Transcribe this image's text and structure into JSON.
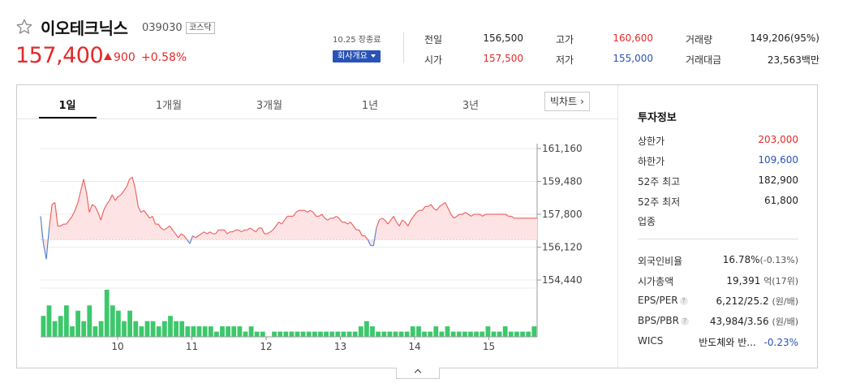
{
  "header": {
    "name": "이오테크닉스",
    "code": "039030",
    "market": "코스닥",
    "price": "157,400",
    "change": "900",
    "change_rate": "+0.58%",
    "date": "10.25 장종료",
    "overview_label": "회사개요"
  },
  "summary": {
    "prev_close_label": "전일",
    "prev_close": "156,500",
    "open_label": "시가",
    "open": "157,500",
    "high_label": "고가",
    "high": "160,600",
    "low_label": "저가",
    "low": "155,000",
    "volume_label": "거래량",
    "volume": "149,206(95%)",
    "amount_label": "거래대금",
    "amount": "23,563",
    "amount_unit": "백만"
  },
  "tabs": [
    "1일",
    "1개월",
    "3개월",
    "1년",
    "3년"
  ],
  "big_chart_label": "빅차트",
  "side": {
    "title": "투자정보",
    "upper_limit_label": "상한가",
    "upper_limit": "203,000",
    "lower_limit_label": "하한가",
    "lower_limit": "109,600",
    "high52_label": "52주 최고",
    "high52": "182,900",
    "low52_label": "52주 최저",
    "low52": "61,800",
    "industry_label": "업종",
    "foreign_label": "외국인비율",
    "foreign": "16.78%",
    "foreign_change": "(-0.13%)",
    "mcap_label": "시가총액",
    "mcap": "19,391",
    "mcap_unit": "억(17위)",
    "eps_label": "EPS/PER",
    "eps": "6,212/25.2",
    "eps_unit": "(원/배)",
    "bps_label": "BPS/PBR",
    "bps": "43,984/3.56",
    "bps_unit": "(원/배)",
    "wics_label": "WICS",
    "wics": "반도체와 반...",
    "wics_change": "-0.23%"
  },
  "colors": {
    "up": "#e32a2a",
    "down": "#2a53b7",
    "volume": "#3cc86b",
    "fill": "#fde3e3"
  },
  "chart_data": {
    "type": "line",
    "ytick_labels": [
      "161,160",
      "159,480",
      "157,800",
      "156,120",
      "154,440"
    ],
    "yticks": [
      161160,
      159480,
      157800,
      156120,
      154440
    ],
    "xtick_labels": [
      "10",
      "11",
      "12",
      "13",
      "14",
      "15"
    ],
    "base": 156500,
    "price": [
      157700,
      156300,
      155500,
      157100,
      158300,
      158400,
      157200,
      157200,
      157300,
      157300,
      157500,
      157700,
      158000,
      158400,
      159000,
      159600,
      158900,
      157900,
      158300,
      158200,
      157900,
      157500,
      158000,
      158300,
      158500,
      158800,
      158500,
      158700,
      158800,
      159000,
      159200,
      159600,
      159700,
      159100,
      158200,
      157900,
      158000,
      157800,
      157600,
      157700,
      157300,
      157300,
      157100,
      157000,
      157100,
      157200,
      157000,
      156800,
      156600,
      156800,
      156700,
      156500,
      156300,
      156700,
      156600,
      156700,
      156800,
      156900,
      156800,
      156900,
      156800,
      156800,
      157000,
      157000,
      157000,
      156800,
      156900,
      156900,
      157000,
      157000,
      156900,
      157000,
      157000,
      157100,
      157000,
      156900,
      157100,
      157100,
      156800,
      156800,
      156900,
      157000,
      157200,
      157400,
      157300,
      157500,
      157700,
      157700,
      157700,
      157900,
      158000,
      158000,
      158000,
      157900,
      158000,
      157900,
      157700,
      157700,
      157800,
      157600,
      157500,
      157600,
      157600,
      157700,
      157600,
      157400,
      157400,
      157300,
      157400,
      157200,
      157000,
      157000,
      156700,
      156700,
      156500,
      156200,
      156200,
      157100,
      157500,
      157600,
      157500,
      157300,
      157500,
      157700,
      157400,
      157200,
      157500,
      157400,
      157200,
      157500,
      157700,
      157900,
      158000,
      158000,
      158200,
      158200,
      158300,
      158100,
      158000,
      158200,
      158300,
      158400,
      158100,
      157800,
      157600,
      157700,
      157800,
      157800,
      157900,
      157800,
      157700,
      157800,
      157800,
      157800,
      157700,
      157800,
      157800,
      157800,
      157800,
      157800,
      157800,
      157800,
      157800,
      157700,
      157700,
      157600,
      157600,
      157600,
      157600,
      157600,
      157600,
      157600,
      157600,
      157600
    ],
    "volume": [
      4,
      6,
      3,
      4,
      6,
      2,
      5,
      3,
      6,
      2,
      3,
      9,
      6,
      5,
      3,
      5,
      3,
      2,
      3,
      3,
      2,
      3,
      4,
      3,
      3,
      2,
      2,
      2,
      2,
      2,
      1,
      2,
      2,
      2,
      2,
      1,
      2,
      1,
      1,
      0,
      1,
      1,
      1,
      1,
      1,
      1,
      1,
      1,
      1,
      1,
      1,
      1,
      1,
      1,
      1,
      2,
      3,
      2,
      1,
      1,
      1,
      1,
      1,
      1,
      2,
      2,
      1,
      1,
      2,
      1,
      2,
      1,
      1,
      1,
      1,
      1,
      1,
      2,
      1,
      1,
      2,
      1,
      1,
      1,
      1,
      2
    ]
  }
}
